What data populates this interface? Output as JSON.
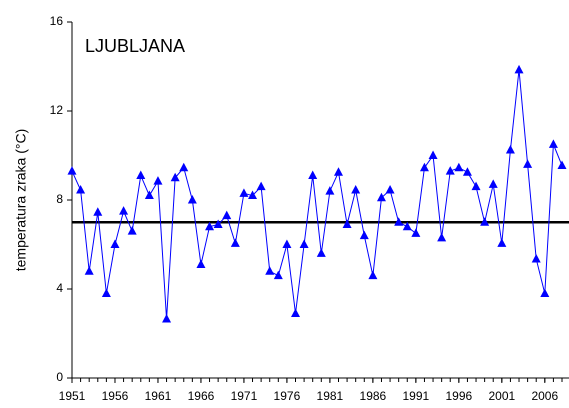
{
  "chart_data": {
    "type": "line",
    "annotation": "LJUBLJANA",
    "ylabel": "temperatura zraka (°C)",
    "x": [
      1951,
      1952,
      1953,
      1954,
      1955,
      1956,
      1957,
      1958,
      1959,
      1960,
      1961,
      1962,
      1963,
      1964,
      1965,
      1966,
      1967,
      1968,
      1969,
      1970,
      1971,
      1972,
      1973,
      1974,
      1975,
      1976,
      1977,
      1978,
      1979,
      1980,
      1981,
      1982,
      1983,
      1984,
      1985,
      1986,
      1987,
      1988,
      1989,
      1990,
      1991,
      1992,
      1993,
      1994,
      1995,
      1996,
      1997,
      1998,
      1999,
      2000,
      2001,
      2002,
      2003,
      2004,
      2005,
      2006,
      2007,
      2008
    ],
    "series": [
      {
        "color": "#0000ff",
        "marker": "triangle",
        "values": [
          9.3,
          8.45,
          4.8,
          7.45,
          3.8,
          6.0,
          7.5,
          6.6,
          9.1,
          8.2,
          8.85,
          2.65,
          9.0,
          9.45,
          8.0,
          5.1,
          6.8,
          6.9,
          7.3,
          6.05,
          8.3,
          8.2,
          8.6,
          4.8,
          4.6,
          6.0,
          2.9,
          6.0,
          9.1,
          5.6,
          8.4,
          9.25,
          6.9,
          8.45,
          6.4,
          4.6,
          8.1,
          8.45,
          7.0,
          6.8,
          6.5,
          9.45,
          10.0,
          6.3,
          9.3,
          9.45,
          9.25,
          8.6,
          7.0,
          8.7,
          6.05,
          10.25,
          13.85,
          9.6,
          5.35,
          3.8,
          10.5,
          9.55
        ]
      }
    ],
    "reference_line": {
      "value": 7.0,
      "color": "#000000"
    },
    "xlim": [
      1951,
      2008
    ],
    "xticks": [
      1951,
      1956,
      1961,
      1966,
      1971,
      1976,
      1981,
      1986,
      1991,
      1996,
      2001,
      2006
    ],
    "ylim": [
      0,
      16
    ],
    "yticks": [
      0,
      4,
      8,
      12,
      16
    ],
    "grid": false
  }
}
